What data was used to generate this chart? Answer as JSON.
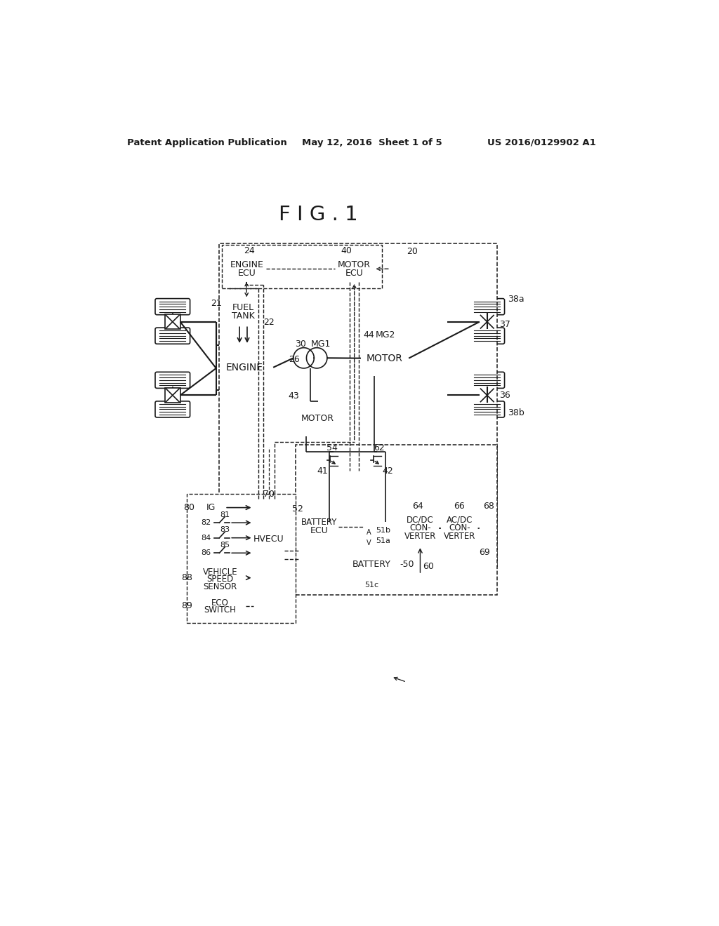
{
  "bg_color": "#ffffff",
  "line_color": "#1a1a1a",
  "title": "F I G . 1",
  "patent_left": "Patent Application Publication",
  "patent_mid": "May 12, 2016  Sheet 1 of 5",
  "patent_right": "US 2016/0129902 A1"
}
